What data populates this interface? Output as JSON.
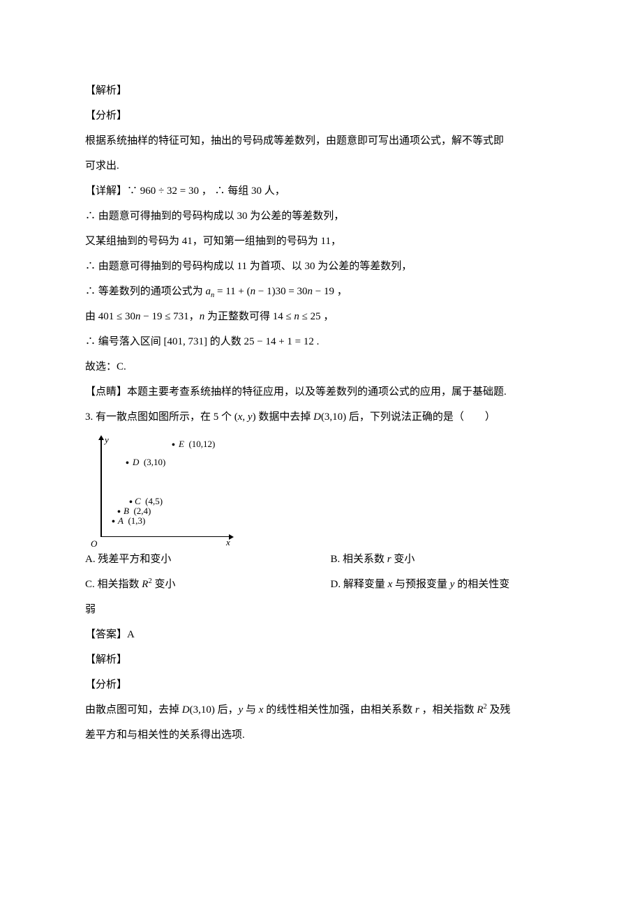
{
  "headers": {
    "analysis": "【解析】",
    "breakdown": "【分析】",
    "detail_prefix": "【详解】",
    "comment_prefix": "【点睛】",
    "answer_prefix": "【答案】"
  },
  "p2": {
    "line1": "根据系统抽样的特征可知，抽出的号码成等差数列，由题意即可写出通项公式，解不等式即",
    "line2": "可求出.",
    "detail_text": "∵ 960 ÷ 32 = 30 ， ∴ 每组 30 人，",
    "l4": "∴ 由题意可得抽到的号码构成以 30 为公差的等差数列，",
    "l5": "又某组抽到的号码为 41，可知第一组抽到的号码为 11，",
    "l6": "∴ 由题意可得抽到的号码构成以 11 为首项、以 30 为公差的等差数列，",
    "l7_html": "∴ 等差数列的通项公式为 <span class=\"math-italic\">a<span class=\"sub\">n</span></span> = 11 + (<span class=\"math-italic\">n</span> − 1)30 = 30<span class=\"math-italic\">n</span> − 19 ，",
    "l8_html": "由 401 ≤ 30<span class=\"math-italic\">n</span> − 19 ≤ 731，<span class=\"math-italic\">n</span> 为正整数可得 14 ≤ <span class=\"math-italic\">n</span> ≤ 25 ，",
    "l9": "∴ 编号落入区间 [401, 731] 的人数 25 − 14 + 1 = 12 .",
    "l10": "故选：C.",
    "comment": "本题主要考查系统抽样的特征应用，以及等差数列的通项公式的应用，属于基础题."
  },
  "p3": {
    "stem_html": "3. 有一散点图如图所示，在 5 个 (<span class=\"math-italic\">x</span>, <span class=\"math-italic\">y</span>) 数据中去掉 <span class=\"math-italic\">D</span>(3,10) 后，下列说法正确的是（　　）",
    "fig": {
      "y_label": "y",
      "x_label": "x",
      "origin": "O",
      "E": "E　(10,12)",
      "D": "D　(3,10)",
      "C": "C　(4,5)",
      "B": "B　(2,4)",
      "A": "A　(1,3)"
    },
    "optA": "A.  残差平方和变小",
    "optB_html": "B.  相关系数 <span class=\"math-italic\">r</span> 变小",
    "optC_html": "C.  相关指数 <span class=\"math-italic\">R</span><span class=\"sup\">2</span> 变小",
    "optD_html": "D.  解释变量 <span class=\"math-italic\">x</span> 与预报变量 <span class=\"math-italic\">y</span> 的相关性变",
    "optD_cont": "弱",
    "answer": "A",
    "analysis_l1_html": "由散点图可知，去掉 <span class=\"math-italic\">D</span>(3,10) 后，<span class=\"math-italic\">y</span> 与 <span class=\"math-italic\">x</span> 的线性相关性加强，由相关系数 <span class=\"math-italic\">r</span> ，相关指数 <span class=\"math-italic\">R</span><span class=\"sup\">2</span> 及残",
    "analysis_l2": "差平方和与相关性的关系得出选项."
  }
}
